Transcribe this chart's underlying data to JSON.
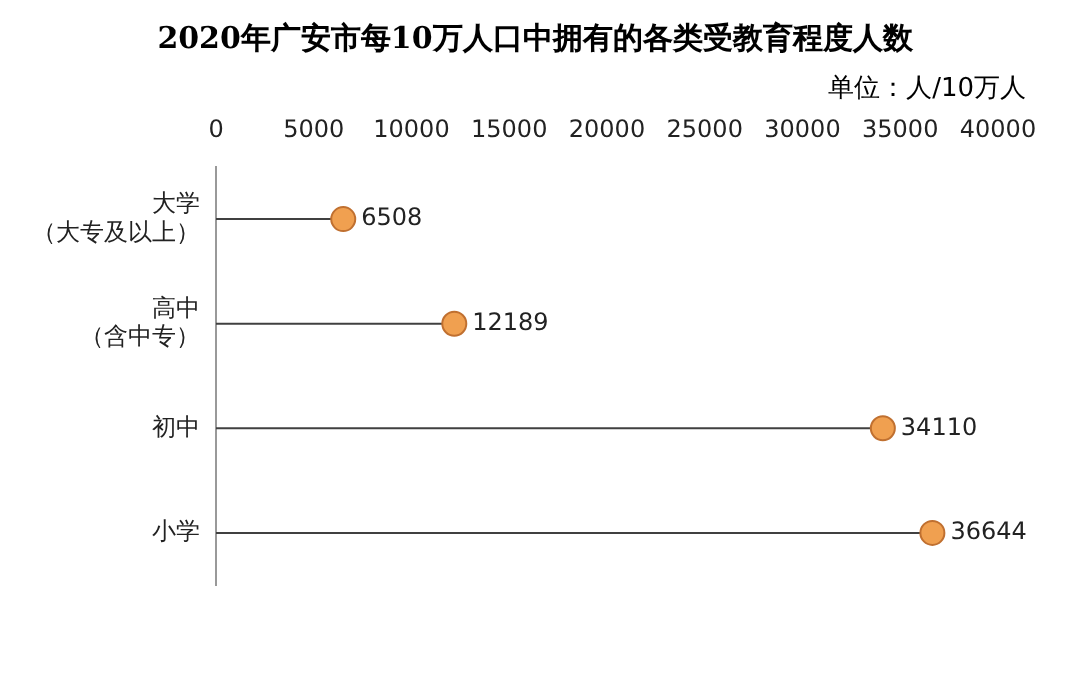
{
  "chart_data": {
    "type": "lollipop",
    "orientation": "horizontal",
    "title": "2020年广安市每10万人口中拥有的各类受教育程度人数",
    "annotations": [
      "单位：人/10万人"
    ],
    "categories": [
      "大学（大专及以上）",
      "高中（含中专）",
      "初中",
      "小学"
    ],
    "values": [
      6508,
      12189,
      34110,
      36644
    ],
    "color": "#f0a050",
    "xlim": [
      0,
      40000
    ],
    "xticks": [
      0,
      5000,
      10000,
      15000,
      20000,
      25000,
      30000,
      35000,
      40000
    ],
    "marker": "circle",
    "data_labels": true
  }
}
